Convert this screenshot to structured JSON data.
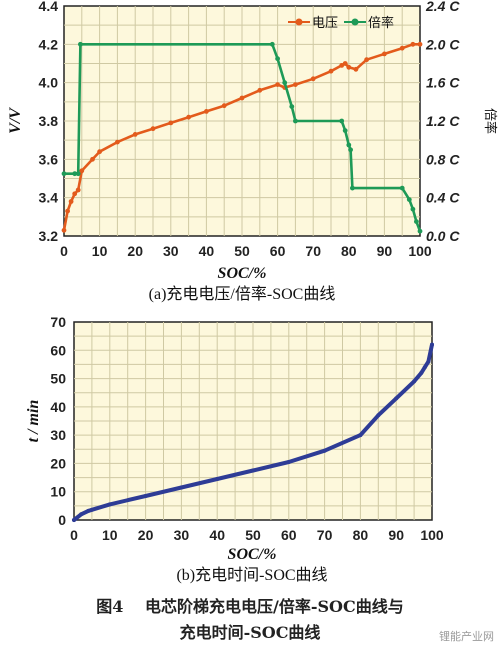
{
  "chart_data": [
    {
      "type": "line",
      "panel": "a",
      "caption": "(a)充电电压/倍率-SOC曲线",
      "xlabel": "SOC/%",
      "ylabel_left": "V/V",
      "ylabel_right": "倍率",
      "xlim": [
        0,
        100
      ],
      "ylim_left": [
        3.2,
        4.4
      ],
      "ylim_right": [
        0.0,
        2.4
      ],
      "xticks": [
        "0",
        "10",
        "20",
        "30",
        "40",
        "50",
        "60",
        "70",
        "80",
        "90",
        "100"
      ],
      "yticks_left": [
        "3.2",
        "3.4",
        "3.6",
        "3.8",
        "4.0",
        "4.2",
        "4.4"
      ],
      "yticks_right": [
        "0.0 C",
        "0.4 C",
        "0.8 C",
        "1.2 C",
        "1.6 C",
        "2.0 C",
        "2.4 C"
      ],
      "legend_placement": "top-right",
      "grid": true,
      "series": [
        {
          "name": "电压",
          "axis": "left",
          "color": "#e35b1c",
          "marker": "circle",
          "x": [
            0,
            1,
            2,
            3,
            4,
            5,
            8,
            10,
            15,
            20,
            25,
            30,
            35,
            40,
            45,
            50,
            55,
            60,
            62,
            65,
            70,
            75,
            78,
            79,
            80,
            82,
            85,
            90,
            95,
            98,
            100
          ],
          "y": [
            3.23,
            3.33,
            3.38,
            3.42,
            3.44,
            3.54,
            3.6,
            3.64,
            3.69,
            3.73,
            3.76,
            3.79,
            3.82,
            3.85,
            3.88,
            3.92,
            3.96,
            3.99,
            3.975,
            3.99,
            4.02,
            4.06,
            4.09,
            4.1,
            4.08,
            4.07,
            4.12,
            4.15,
            4.18,
            4.2,
            4.2
          ]
        },
        {
          "name": "倍率",
          "axis": "right",
          "color": "#1e9a57",
          "marker": "circle",
          "x": [
            0,
            3,
            4,
            4.6,
            58.5,
            60,
            62,
            64,
            65,
            78,
            79,
            80,
            80.5,
            81,
            95,
            97,
            98,
            99,
            100
          ],
          "y": [
            0.65,
            0.65,
            0.65,
            2.0,
            2.0,
            1.85,
            1.6,
            1.35,
            1.2,
            1.2,
            1.1,
            0.95,
            0.9,
            0.5,
            0.5,
            0.38,
            0.28,
            0.15,
            0.05
          ]
        }
      ]
    },
    {
      "type": "line",
      "panel": "b",
      "caption": "(b)充电时间-SOC曲线",
      "xlabel": "SOC/%",
      "ylabel": "t / min",
      "xlim": [
        0,
        100
      ],
      "ylim": [
        0,
        70
      ],
      "xticks": [
        "0",
        "10",
        "20",
        "30",
        "40",
        "50",
        "60",
        "70",
        "80",
        "90",
        "100"
      ],
      "yticks": [
        "0",
        "10",
        "20",
        "30",
        "40",
        "50",
        "60",
        "70"
      ],
      "grid": true,
      "series": [
        {
          "color": "#2e3c96",
          "x": [
            0,
            2,
            4,
            5,
            10,
            20,
            30,
            40,
            50,
            60,
            70,
            80,
            85,
            90,
            95,
            97,
            98,
            99,
            100
          ],
          "y": [
            0,
            2,
            3.2,
            3.6,
            5.5,
            8.5,
            11.5,
            14.5,
            17.5,
            20.5,
            24.5,
            30,
            37,
            43,
            49,
            52,
            54,
            56,
            62
          ]
        }
      ]
    }
  ],
  "figure_caption_line1": "图4　 电芯阶梯充电电压/倍率-SOC曲线与",
  "figure_caption_line2": "充电时间-SOC曲线",
  "watermark": "锂能产业网"
}
